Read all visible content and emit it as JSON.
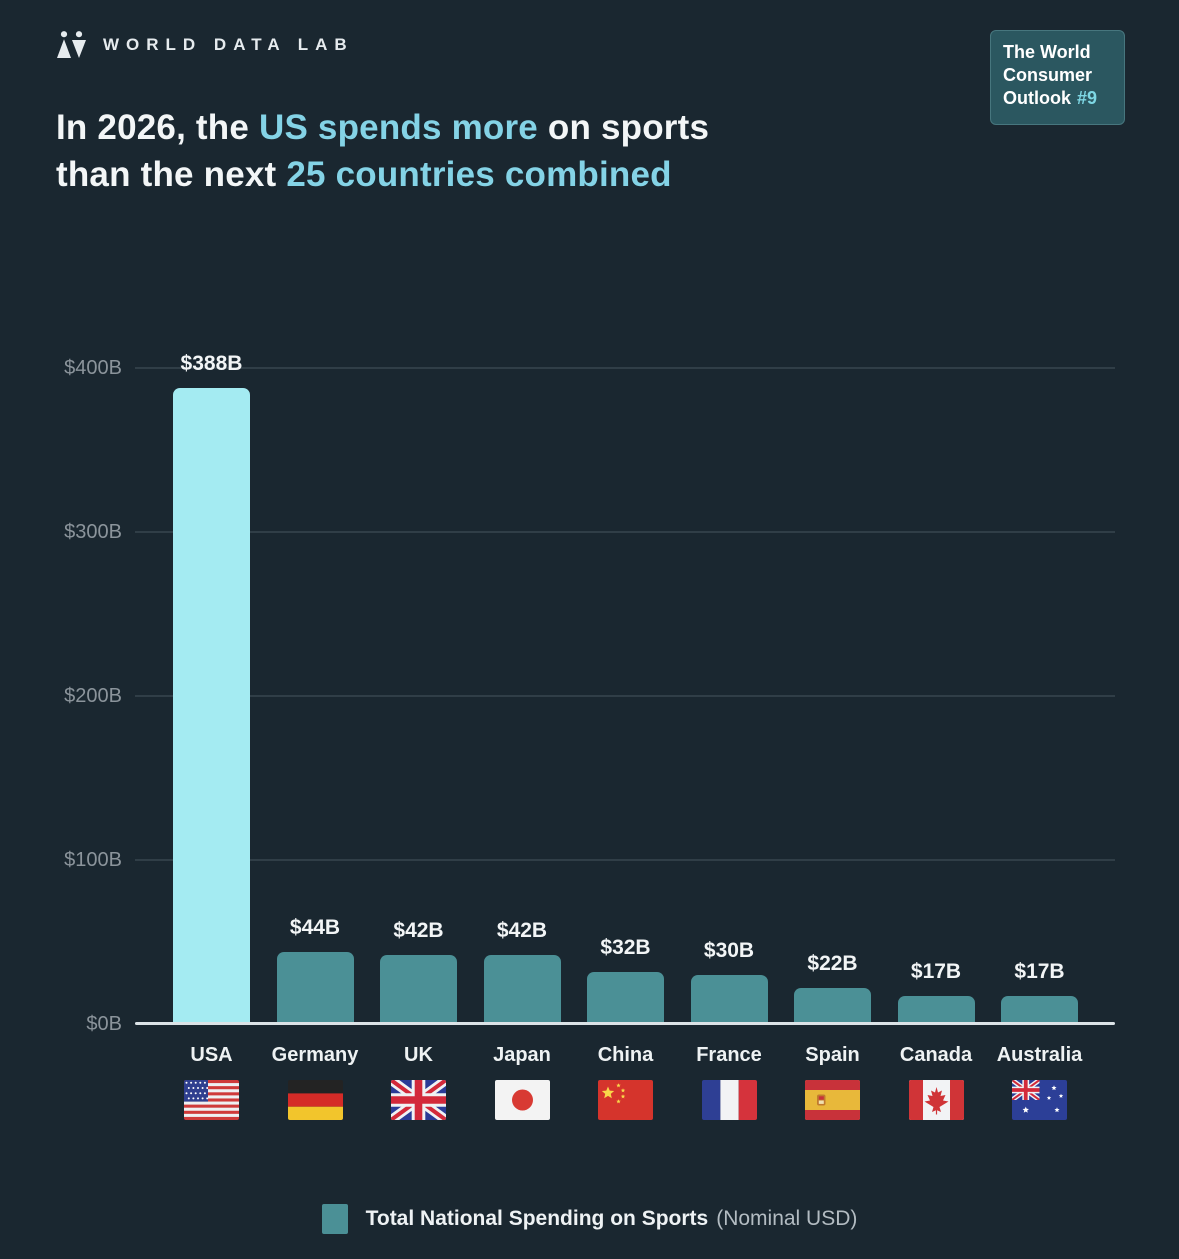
{
  "header": {
    "logo_text": "WORLD DATA LAB",
    "badge": {
      "line1": "The World",
      "line2": "Consumer",
      "line3_word": "Outlook",
      "issue": "#9"
    }
  },
  "title": {
    "line1": [
      {
        "text": "In 2026, the ",
        "accent": false
      },
      {
        "text": "US spends more",
        "accent": true
      },
      {
        "text": " on sports",
        "accent": false
      }
    ],
    "line2": [
      {
        "text": "than the next ",
        "accent": false
      },
      {
        "text": "25 countries combined",
        "accent": true
      }
    ]
  },
  "chart_data": {
    "type": "bar",
    "title": "In 2026, the US spends more on sports than the next 25 countries combined",
    "categories": [
      "USA",
      "Germany",
      "UK",
      "Japan",
      "China",
      "France",
      "Spain",
      "Canada",
      "Australia"
    ],
    "values": [
      388,
      44,
      42,
      42,
      32,
      30,
      22,
      17,
      17
    ],
    "value_labels": [
      "$388B",
      "$44B",
      "$42B",
      "$42B",
      "$32B",
      "$30B",
      "$22B",
      "$17B",
      "$17B"
    ],
    "flags": [
      "usa",
      "germany",
      "uk",
      "japan",
      "china",
      "france",
      "spain",
      "canada",
      "australia"
    ],
    "xlabel": "",
    "ylabel": "",
    "ylim": [
      0,
      400
    ],
    "ytick_values": [
      0,
      100,
      200,
      300,
      400
    ],
    "ytick_labels": [
      "$0B",
      "$100B",
      "$200B",
      "$300B",
      "$400B"
    ],
    "grid": true,
    "highlight_index": 0,
    "legend": {
      "label": "Total National Spending on Sports",
      "note": "(Nominal USD)",
      "position": "bottom"
    }
  },
  "colors": {
    "background": "#1a2730",
    "accent_cyan": "#84d3e6",
    "bar_highlight": "#a4ebf2",
    "bar_default": "#4b9096",
    "grid": "#303e47",
    "axis_text": "#8b949b",
    "baseline": "#dce3e7",
    "badge_bg": "#2b5760",
    "badge_border": "#47767e",
    "text": "#f2f5f6",
    "note_text": "#b3bcc2"
  }
}
